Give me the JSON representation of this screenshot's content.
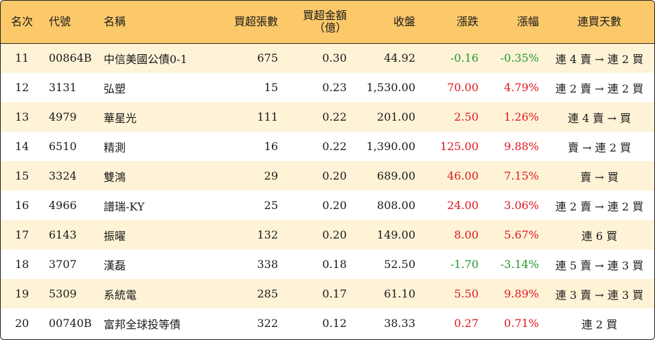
{
  "colors": {
    "header_bg": "#fbc96a",
    "row_alt_bg": "#fef3d7",
    "row_bg": "#ffffff",
    "up": "#e0161e",
    "down": "#1f9a2b"
  },
  "headers": {
    "rank": "名次",
    "code": "代號",
    "name": "名稱",
    "net_lots": "買超張數",
    "net_amount": "買超金額\n（億）",
    "close": "收盤",
    "change": "漲跌",
    "change_pct": "漲幅",
    "streak": "連買天數"
  },
  "rows": [
    {
      "rank": "11",
      "code": "00864B",
      "name": "中信美國公債0-1",
      "net_lots": "675",
      "net_amount": "0.30",
      "close": "44.92",
      "change": "-0.16",
      "change_pct": "-0.35%",
      "direction": "down",
      "streak": "連 4 賣 → 連 2 買"
    },
    {
      "rank": "12",
      "code": "3131",
      "name": "弘塑",
      "net_lots": "15",
      "net_amount": "0.23",
      "close": "1,530.00",
      "change": "70.00",
      "change_pct": "4.79%",
      "direction": "up",
      "streak": "連 2 賣 → 連 2 買"
    },
    {
      "rank": "13",
      "code": "4979",
      "name": "華星光",
      "net_lots": "111",
      "net_amount": "0.22",
      "close": "201.00",
      "change": "2.50",
      "change_pct": "1.26%",
      "direction": "up",
      "streak": "連 4 賣 → 買"
    },
    {
      "rank": "14",
      "code": "6510",
      "name": "精測",
      "net_lots": "16",
      "net_amount": "0.22",
      "close": "1,390.00",
      "change": "125.00",
      "change_pct": "9.88%",
      "direction": "up",
      "streak": "賣 → 連 2 買"
    },
    {
      "rank": "15",
      "code": "3324",
      "name": "雙鴻",
      "net_lots": "29",
      "net_amount": "0.20",
      "close": "689.00",
      "change": "46.00",
      "change_pct": "7.15%",
      "direction": "up",
      "streak": "賣 → 買"
    },
    {
      "rank": "16",
      "code": "4966",
      "name": "譜瑞-KY",
      "net_lots": "25",
      "net_amount": "0.20",
      "close": "808.00",
      "change": "24.00",
      "change_pct": "3.06%",
      "direction": "up",
      "streak": "連 2 賣 → 連 2 買"
    },
    {
      "rank": "17",
      "code": "6143",
      "name": "振曜",
      "net_lots": "132",
      "net_amount": "0.20",
      "close": "149.00",
      "change": "8.00",
      "change_pct": "5.67%",
      "direction": "up",
      "streak": "連 6 買"
    },
    {
      "rank": "18",
      "code": "3707",
      "name": "漢磊",
      "net_lots": "338",
      "net_amount": "0.18",
      "close": "52.50",
      "change": "-1.70",
      "change_pct": "-3.14%",
      "direction": "down",
      "streak": "連 5 賣 → 連 3 買"
    },
    {
      "rank": "19",
      "code": "5309",
      "name": "系統電",
      "net_lots": "285",
      "net_amount": "0.17",
      "close": "61.10",
      "change": "5.50",
      "change_pct": "9.89%",
      "direction": "up",
      "streak": "連 3 賣 → 連 3 買"
    },
    {
      "rank": "20",
      "code": "00740B",
      "name": "富邦全球投等債",
      "net_lots": "322",
      "net_amount": "0.12",
      "close": "38.33",
      "change": "0.27",
      "change_pct": "0.71%",
      "direction": "up",
      "streak": "連 2 買"
    }
  ]
}
